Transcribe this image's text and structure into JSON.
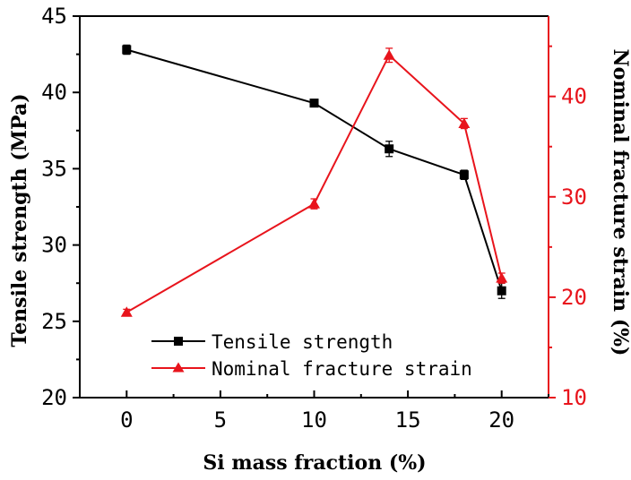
{
  "chart_data": {
    "type": "line",
    "title": "",
    "xlabel": "Si mass fraction (%)",
    "ylabel": "Tensile strength (MPa)",
    "y2label": "Nominal fracture strain (%)",
    "xlim": [
      -2.5,
      22.5
    ],
    "ylim": [
      20,
      45
    ],
    "y2lim": [
      10,
      48
    ],
    "x_ticks": [
      0,
      5,
      10,
      15,
      20
    ],
    "y_ticks": [
      20,
      25,
      30,
      35,
      40,
      45
    ],
    "y2_ticks": [
      10,
      20,
      30,
      40
    ],
    "legend_position": "lower-left",
    "series": [
      {
        "name": "Tensile strength",
        "axis": "left",
        "color": "#000000",
        "marker": "square",
        "x": [
          0,
          10,
          14,
          18,
          20
        ],
        "values": [
          42.8,
          39.3,
          36.3,
          34.6,
          27.0
        ],
        "errors": [
          0.3,
          0.15,
          0.5,
          0.3,
          0.5
        ]
      },
      {
        "name": "Nominal fracture strain",
        "axis": "right",
        "color": "#e8141c",
        "marker": "triangle",
        "x": [
          0,
          10,
          14,
          18,
          20
        ],
        "values": [
          18.5,
          29.3,
          44.1,
          37.3,
          21.9
        ],
        "errors": [
          0.3,
          0.5,
          0.7,
          0.5,
          0.5
        ]
      }
    ]
  }
}
